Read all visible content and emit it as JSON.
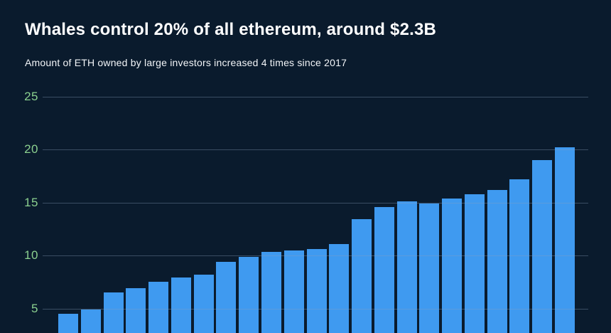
{
  "header": {
    "title": "Whales control 20% of all ethereum, around $2.3B",
    "subtitle": "Amount of ETH owned by large investors increased 4 times since 2017"
  },
  "colors": {
    "background": "#0a1b2d",
    "bar": "#3f9af0",
    "gridline": "#384960",
    "tick_label": "#8bd08f",
    "title_text": "#ffffff"
  },
  "chart_data": {
    "type": "bar",
    "title": "Whales control 20% of all ethereum, around $2.3B",
    "subtitle": "Amount of ETH owned by large investors increased 4 times since 2017",
    "values": [
      4.5,
      4.9,
      6.5,
      6.9,
      7.5,
      7.9,
      8.2,
      9.4,
      9.9,
      10.35,
      10.45,
      10.6,
      11.1,
      13.4,
      14.6,
      15.1,
      14.9,
      15.4,
      15.8,
      16.2,
      17.2,
      19.0,
      20.2
    ],
    "xlabel": "",
    "ylabel": "",
    "yticks": [
      5,
      10,
      15,
      20,
      25
    ],
    "grid": true,
    "legend": false,
    "x_axis_labels_visible": false,
    "note": "bottom of bars cropped out of frame"
  }
}
